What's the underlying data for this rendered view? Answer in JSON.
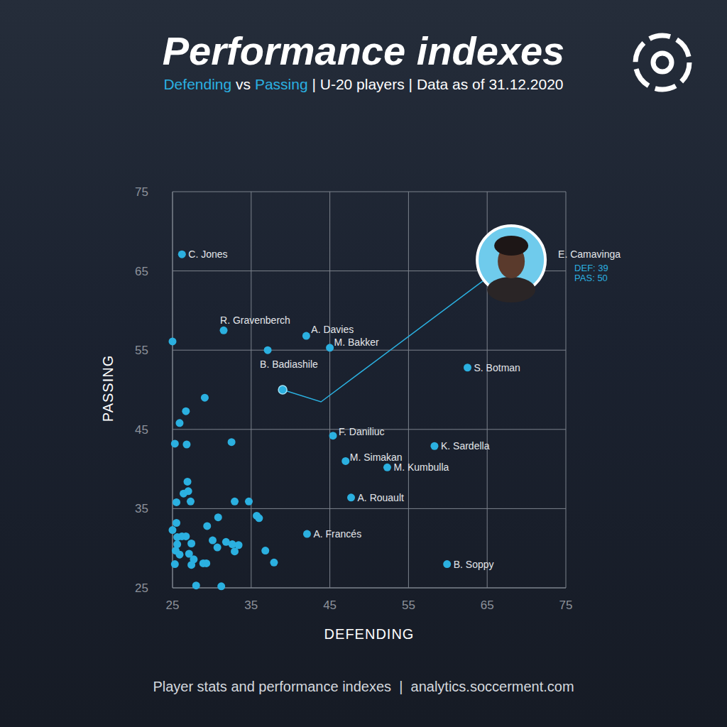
{
  "chart_data": {
    "type": "scatter",
    "title": "Performance indexes",
    "subtitle": "Defending vs Passing | U-20 players | Data as of 31.12.2020",
    "subtitle_highlights": [
      "Defending",
      "Passing"
    ],
    "footer": "Player stats and performance indexes  |  analytics.soccerment.com",
    "x_label": "DEFENDING",
    "y_label": "PASSING",
    "xlim": [
      25,
      75
    ],
    "ylim": [
      25,
      75
    ],
    "xticks": [
      25,
      35,
      45,
      55,
      65,
      75
    ],
    "yticks": [
      25,
      35,
      45,
      55,
      65,
      75
    ],
    "grid": true,
    "color": "#2bb0e0",
    "highlight": {
      "label": "E. Camavinga",
      "x": 39,
      "y": 50,
      "details": [
        "DEF: 39",
        "PAS: 50"
      ]
    },
    "points": [
      {
        "x": 26.2,
        "y": 67.1,
        "label": "C. Jones"
      },
      {
        "x": 31.5,
        "y": 57.5,
        "label": "R. Gravenberch"
      },
      {
        "x": 42.0,
        "y": 56.8,
        "label": "A. Davies"
      },
      {
        "x": 45.0,
        "y": 55.3,
        "label": "M. Bakker"
      },
      {
        "x": 37.1,
        "y": 55.0,
        "label": "B. Badiashile"
      },
      {
        "x": 62.5,
        "y": 52.8,
        "label": "S. Botman"
      },
      {
        "x": 45.4,
        "y": 44.2,
        "label": "F. Daniliuc"
      },
      {
        "x": 58.3,
        "y": 42.9,
        "label": "K. Sardella"
      },
      {
        "x": 47.0,
        "y": 41.0,
        "label": "M. Simakan"
      },
      {
        "x": 52.3,
        "y": 40.2,
        "label": "M. Kumbulla"
      },
      {
        "x": 47.7,
        "y": 36.4,
        "label": "A. Rouault"
      },
      {
        "x": 42.1,
        "y": 31.8,
        "label": "A. Francés"
      },
      {
        "x": 59.9,
        "y": 28.0,
        "label": "B. Soppy"
      },
      {
        "x": 25.0,
        "y": 56.1
      },
      {
        "x": 29.1,
        "y": 49.0
      },
      {
        "x": 26.7,
        "y": 47.3
      },
      {
        "x": 25.9,
        "y": 45.8
      },
      {
        "x": 25.3,
        "y": 43.2
      },
      {
        "x": 26.8,
        "y": 43.1
      },
      {
        "x": 32.5,
        "y": 43.4
      },
      {
        "x": 26.9,
        "y": 38.4
      },
      {
        "x": 26.4,
        "y": 36.9
      },
      {
        "x": 27.0,
        "y": 37.2
      },
      {
        "x": 27.3,
        "y": 35.9
      },
      {
        "x": 32.9,
        "y": 35.9
      },
      {
        "x": 34.7,
        "y": 35.9
      },
      {
        "x": 25.5,
        "y": 35.8
      },
      {
        "x": 30.8,
        "y": 33.9
      },
      {
        "x": 35.7,
        "y": 34.1
      },
      {
        "x": 36.0,
        "y": 33.8
      },
      {
        "x": 29.4,
        "y": 32.8
      },
      {
        "x": 25.0,
        "y": 32.3
      },
      {
        "x": 25.5,
        "y": 33.2
      },
      {
        "x": 26.2,
        "y": 31.5
      },
      {
        "x": 26.7,
        "y": 31.5
      },
      {
        "x": 25.6,
        "y": 31.4
      },
      {
        "x": 25.6,
        "y": 30.5
      },
      {
        "x": 27.4,
        "y": 30.6
      },
      {
        "x": 30.1,
        "y": 31.0
      },
      {
        "x": 31.8,
        "y": 30.8
      },
      {
        "x": 32.6,
        "y": 30.5
      },
      {
        "x": 33.4,
        "y": 30.4
      },
      {
        "x": 30.7,
        "y": 30.1
      },
      {
        "x": 32.9,
        "y": 29.6
      },
      {
        "x": 36.8,
        "y": 29.7
      },
      {
        "x": 25.4,
        "y": 29.7
      },
      {
        "x": 25.9,
        "y": 29.2
      },
      {
        "x": 27.1,
        "y": 29.3
      },
      {
        "x": 27.7,
        "y": 28.6
      },
      {
        "x": 27.4,
        "y": 27.9
      },
      {
        "x": 28.9,
        "y": 28.1
      },
      {
        "x": 29.3,
        "y": 28.1
      },
      {
        "x": 37.9,
        "y": 28.2
      },
      {
        "x": 25.3,
        "y": 28.0
      },
      {
        "x": 28.0,
        "y": 25.3
      },
      {
        "x": 31.2,
        "y": 25.2
      }
    ]
  }
}
